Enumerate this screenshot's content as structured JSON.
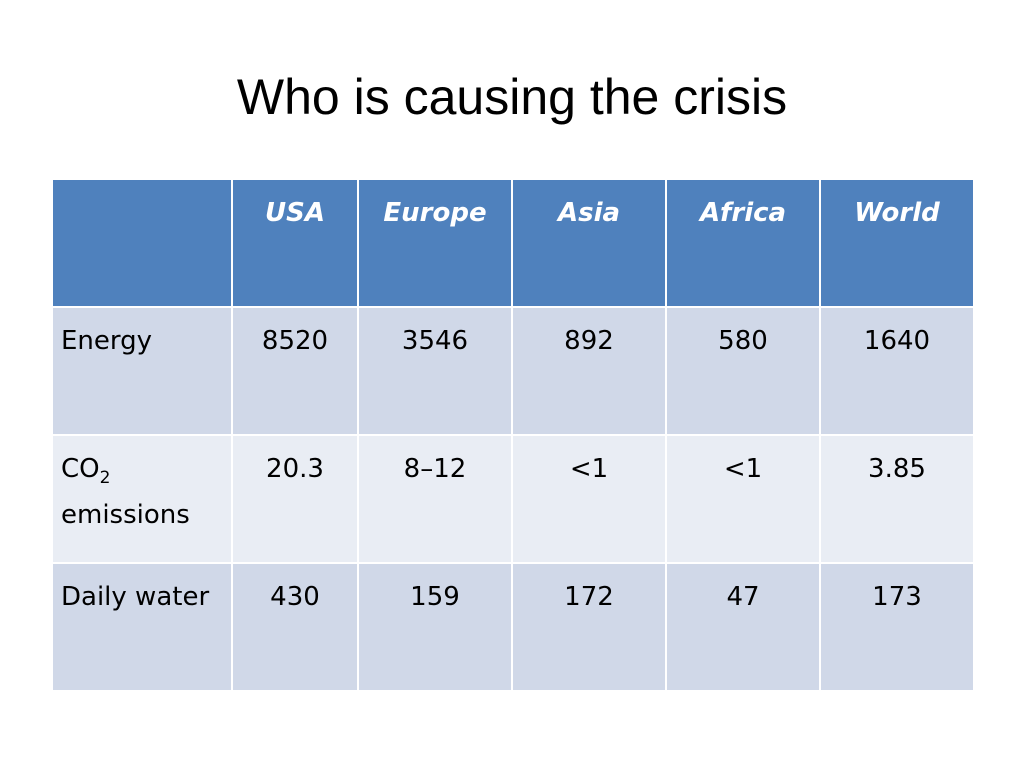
{
  "slide": {
    "title": "Who is causing the crisis"
  },
  "table": {
    "columns": [
      "",
      "USA",
      "Europe",
      "Asia",
      "Africa",
      "World"
    ],
    "rows": [
      {
        "label": "Energy",
        "values": [
          "8520",
          "3546",
          "892",
          "580",
          "1640"
        ]
      },
      {
        "label_main": "CO",
        "label_sub": "2",
        "label_line2": "emissions",
        "values": [
          "20.3",
          "8–12",
          "<1",
          "<1",
          "3.85"
        ]
      },
      {
        "label": "Daily water",
        "values": [
          "430",
          "159",
          "172",
          "47",
          "173"
        ]
      }
    ]
  },
  "colors": {
    "header_bg": "#4f81bd",
    "row_odd_bg": "#d0d8e8",
    "row_even_bg": "#e9edf4"
  }
}
